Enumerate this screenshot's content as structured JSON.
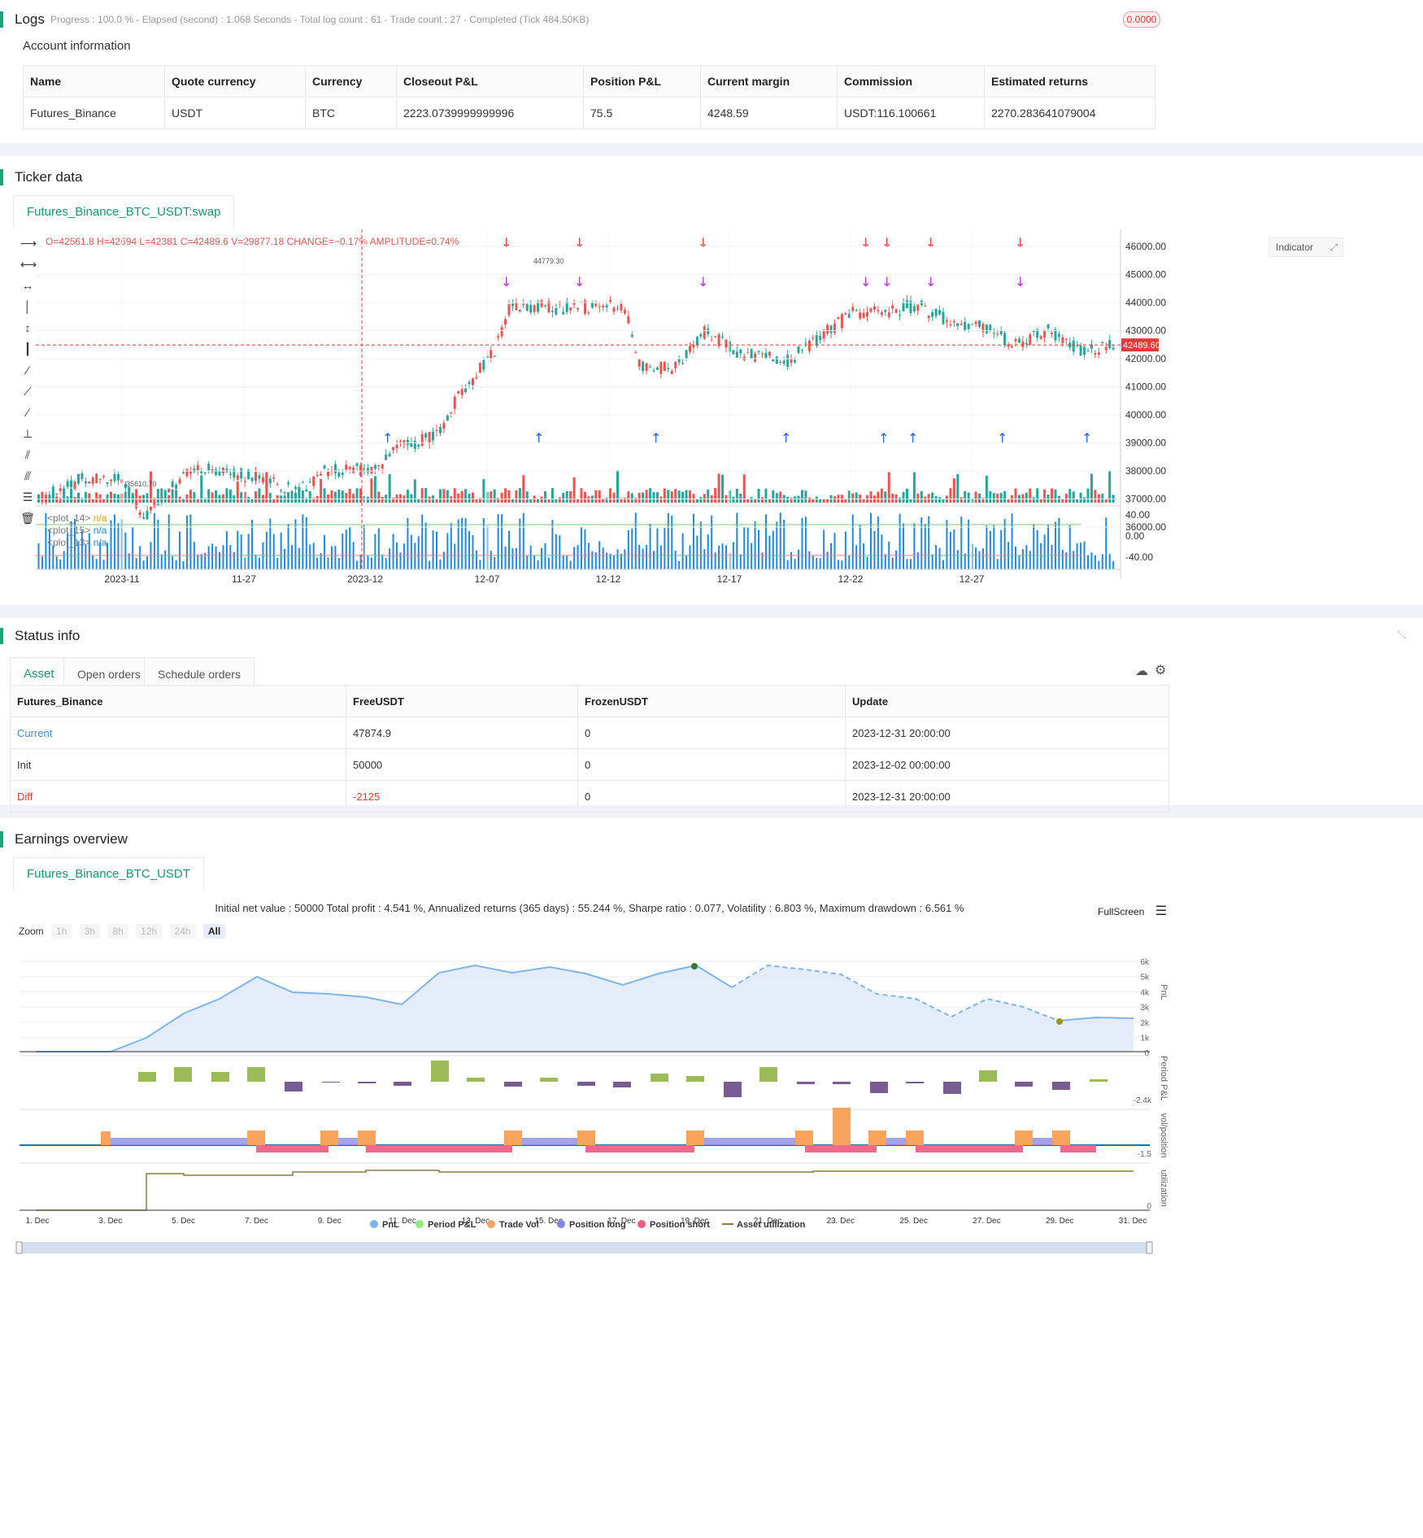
{
  "logs": {
    "title": "Logs",
    "status": "Progress : 100.0 % - Elapsed (second) : 1.068  Seconds - Total log count : 61 - Trade count : 27 - Completed (Tick 484.50KB)",
    "badge": "0.0000"
  },
  "account": {
    "title": "Account information",
    "headers": [
      "Name",
      "Quote currency",
      "Currency",
      "Closeout P&L",
      "Position P&L",
      "Current margin",
      "Commission",
      "Estimated returns"
    ],
    "row": [
      "Futures_Binance",
      "USDT",
      "BTC",
      "2223.0739999999996",
      "75.5",
      "4248.59",
      "USDT:116.100661",
      "2270.283641079004"
    ]
  },
  "ticker": {
    "title": "Ticker data",
    "tab": "Futures_Binance_BTC_USDT:swap",
    "ohlc": "O=42561.8 H=42694 L=42381 C=42489.6 V=29877.18 CHANGE=−0.17% AMPLITUDE=0.74%",
    "indicator_btn": "Indicator",
    "price_label": "42489.60",
    "high_label": "44779.30",
    "low_label": "35610.70",
    "plot_labels": [
      "<plot_14>",
      "<plot_15>",
      "<plot_13>"
    ],
    "na": "n/a",
    "y_ticks": [
      "46000.00",
      "45000.00",
      "44000.00",
      "43000.00",
      "42000.00",
      "41000.00",
      "40000.00",
      "39000.00",
      "38000.00",
      "37000.00",
      "36000.00"
    ],
    "osc_ticks": [
      "40.00",
      "0.00",
      "-40.00"
    ],
    "x_ticks": [
      "2023-11",
      "11-27",
      "2023-12",
      "12-07",
      "12-12",
      "12-17",
      "12-22",
      "12-27"
    ],
    "colors": {
      "up": "#26a69a",
      "down": "#ef5350",
      "osc": "#1e88e5",
      "long": "#2962ff",
      "short": "#e53935",
      "close": "#c030e0"
    }
  },
  "status": {
    "title": "Status info",
    "tabs": [
      "Asset",
      "Open orders",
      "Schedule orders"
    ],
    "headers": [
      "Futures_Binance",
      "FreeUSDT",
      "FrozenUSDT",
      "Update"
    ],
    "rows": [
      [
        "Current",
        "47874.9",
        "0",
        "2023-12-31 20:00:00"
      ],
      [
        "Init",
        "50000",
        "0",
        "2023-12-02 00:00:00"
      ],
      [
        "Diff",
        "-2125",
        "0",
        "2023-12-31 20:00:00"
      ]
    ]
  },
  "earnings": {
    "title": "Earnings overview",
    "tab": "Futures_Binance_BTC_USDT",
    "summary": "Initial net value : 50000 Total profit : 4.541 %, Annualized returns (365 days) : 55.244 %, Sharpe ratio : 0.077, Volatility : 6.803 %, Maximum drawdown : 6.561 %",
    "fullscreen": "FullScreen",
    "zoom_label": "Zoom",
    "zoom": [
      "1h",
      "3h",
      "8h",
      "12h",
      "24h",
      "All"
    ],
    "pnl_ticks": [
      "6k",
      "5k",
      "4k",
      "3k",
      "2k",
      "1k",
      "0"
    ],
    "axis_labels": [
      "PnL",
      "Period P&L",
      "vol/position",
      "utilization"
    ],
    "period_tick": "-2.4k",
    "vol_tick": "-1.5",
    "util_tick": "0",
    "x_ticks": [
      "1. Dec",
      "3. Dec",
      "5. Dec",
      "7. Dec",
      "9. Dec",
      "11. Dec",
      "13. Dec",
      "15. Dec",
      "17. Dec",
      "19. Dec",
      "21. Dec",
      "23. Dec",
      "25. Dec",
      "27. Dec",
      "29. Dec",
      "31. Dec"
    ],
    "legend": [
      "PnL",
      "Period P&L",
      "Trade Vol",
      "Position long",
      "Position short",
      "Asset utilization"
    ],
    "legend_colors": [
      "#7cb5ec",
      "#90ed7d",
      "#f7a35c",
      "#8085e9",
      "#f15c80",
      "#8d7a3a"
    ]
  }
}
